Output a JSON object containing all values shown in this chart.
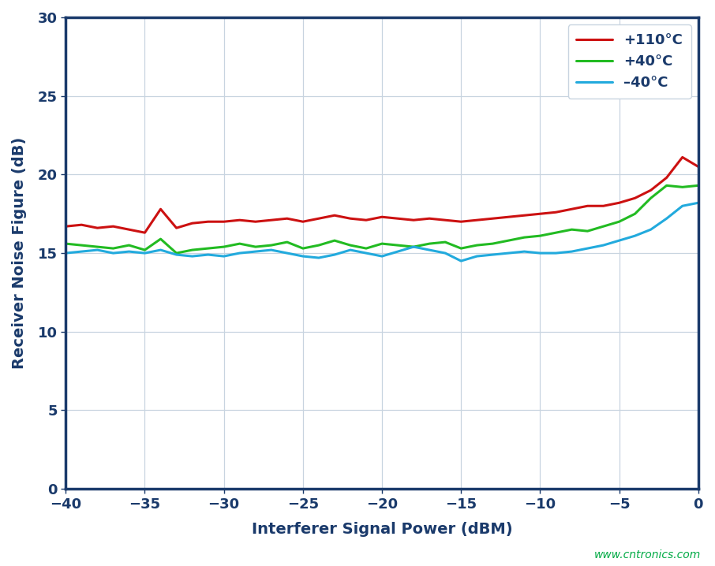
{
  "title": "",
  "xlabel": "Interferer Signal Power (dBM)",
  "ylabel": "Receiver Noise Figure (dB)",
  "xlim": [
    -40,
    0
  ],
  "ylim": [
    0,
    30
  ],
  "xticks": [
    -40,
    -35,
    -30,
    -25,
    -20,
    -15,
    -10,
    -5,
    0
  ],
  "yticks": [
    0,
    5,
    10,
    15,
    20,
    25,
    30
  ],
  "background_color": "#FFFFFF",
  "plot_bg_color": "#FFFFFF",
  "grid_color": "#C8D4E0",
  "axis_color": "#1a3a6b",
  "watermark": "www.cntronics.com",
  "watermark_color": "#00AA44",
  "series": [
    {
      "label": "+110°C",
      "color": "#CC1111",
      "linewidth": 2.2,
      "x": [
        -40,
        -39,
        -38,
        -37,
        -36,
        -35,
        -34,
        -33,
        -32,
        -31,
        -30,
        -29,
        -28,
        -27,
        -26,
        -25,
        -24,
        -23,
        -22,
        -21,
        -20,
        -19,
        -18,
        -17,
        -16,
        -15,
        -14,
        -13,
        -12,
        -11,
        -10,
        -9,
        -8,
        -7,
        -6,
        -5,
        -4,
        -3,
        -2,
        -1,
        0
      ],
      "y": [
        16.7,
        16.8,
        16.6,
        16.7,
        16.5,
        16.3,
        17.8,
        16.6,
        16.9,
        17.0,
        17.0,
        17.1,
        17.0,
        17.1,
        17.2,
        17.0,
        17.2,
        17.4,
        17.2,
        17.1,
        17.3,
        17.2,
        17.1,
        17.2,
        17.1,
        17.0,
        17.1,
        17.2,
        17.3,
        17.4,
        17.5,
        17.6,
        17.8,
        18.0,
        18.0,
        18.2,
        18.5,
        19.0,
        19.8,
        21.1,
        20.5
      ]
    },
    {
      "label": "+40°C",
      "color": "#22BB22",
      "linewidth": 2.2,
      "x": [
        -40,
        -39,
        -38,
        -37,
        -36,
        -35,
        -34,
        -33,
        -32,
        -31,
        -30,
        -29,
        -28,
        -27,
        -26,
        -25,
        -24,
        -23,
        -22,
        -21,
        -20,
        -19,
        -18,
        -17,
        -16,
        -15,
        -14,
        -13,
        -12,
        -11,
        -10,
        -9,
        -8,
        -7,
        -6,
        -5,
        -4,
        -3,
        -2,
        -1,
        0
      ],
      "y": [
        15.6,
        15.5,
        15.4,
        15.3,
        15.5,
        15.2,
        15.9,
        15.0,
        15.2,
        15.3,
        15.4,
        15.6,
        15.4,
        15.5,
        15.7,
        15.3,
        15.5,
        15.8,
        15.5,
        15.3,
        15.6,
        15.5,
        15.4,
        15.6,
        15.7,
        15.3,
        15.5,
        15.6,
        15.8,
        16.0,
        16.1,
        16.3,
        16.5,
        16.4,
        16.7,
        17.0,
        17.5,
        18.5,
        19.3,
        19.2,
        19.3
      ]
    },
    {
      "label": "–40°C",
      "color": "#22AADD",
      "linewidth": 2.2,
      "x": [
        -40,
        -39,
        -38,
        -37,
        -36,
        -35,
        -34,
        -33,
        -32,
        -31,
        -30,
        -29,
        -28,
        -27,
        -26,
        -25,
        -24,
        -23,
        -22,
        -21,
        -20,
        -19,
        -18,
        -17,
        -16,
        -15,
        -14,
        -13,
        -12,
        -11,
        -10,
        -9,
        -8,
        -7,
        -6,
        -5,
        -4,
        -3,
        -2,
        -1,
        0
      ],
      "y": [
        15.0,
        15.1,
        15.2,
        15.0,
        15.1,
        15.0,
        15.2,
        14.9,
        14.8,
        14.9,
        14.8,
        15.0,
        15.1,
        15.2,
        15.0,
        14.8,
        14.7,
        14.9,
        15.2,
        15.0,
        14.8,
        15.1,
        15.4,
        15.2,
        15.0,
        14.5,
        14.8,
        14.9,
        15.0,
        15.1,
        15.0,
        15.0,
        15.1,
        15.3,
        15.5,
        15.8,
        16.1,
        16.5,
        17.2,
        18.0,
        18.2
      ]
    }
  ],
  "legend_fontsize": 13,
  "axis_label_fontsize": 14,
  "tick_fontsize": 13,
  "axis_label_color": "#1a3a6b",
  "tick_color": "#1a3a6b",
  "spine_linewidth": 2.5
}
